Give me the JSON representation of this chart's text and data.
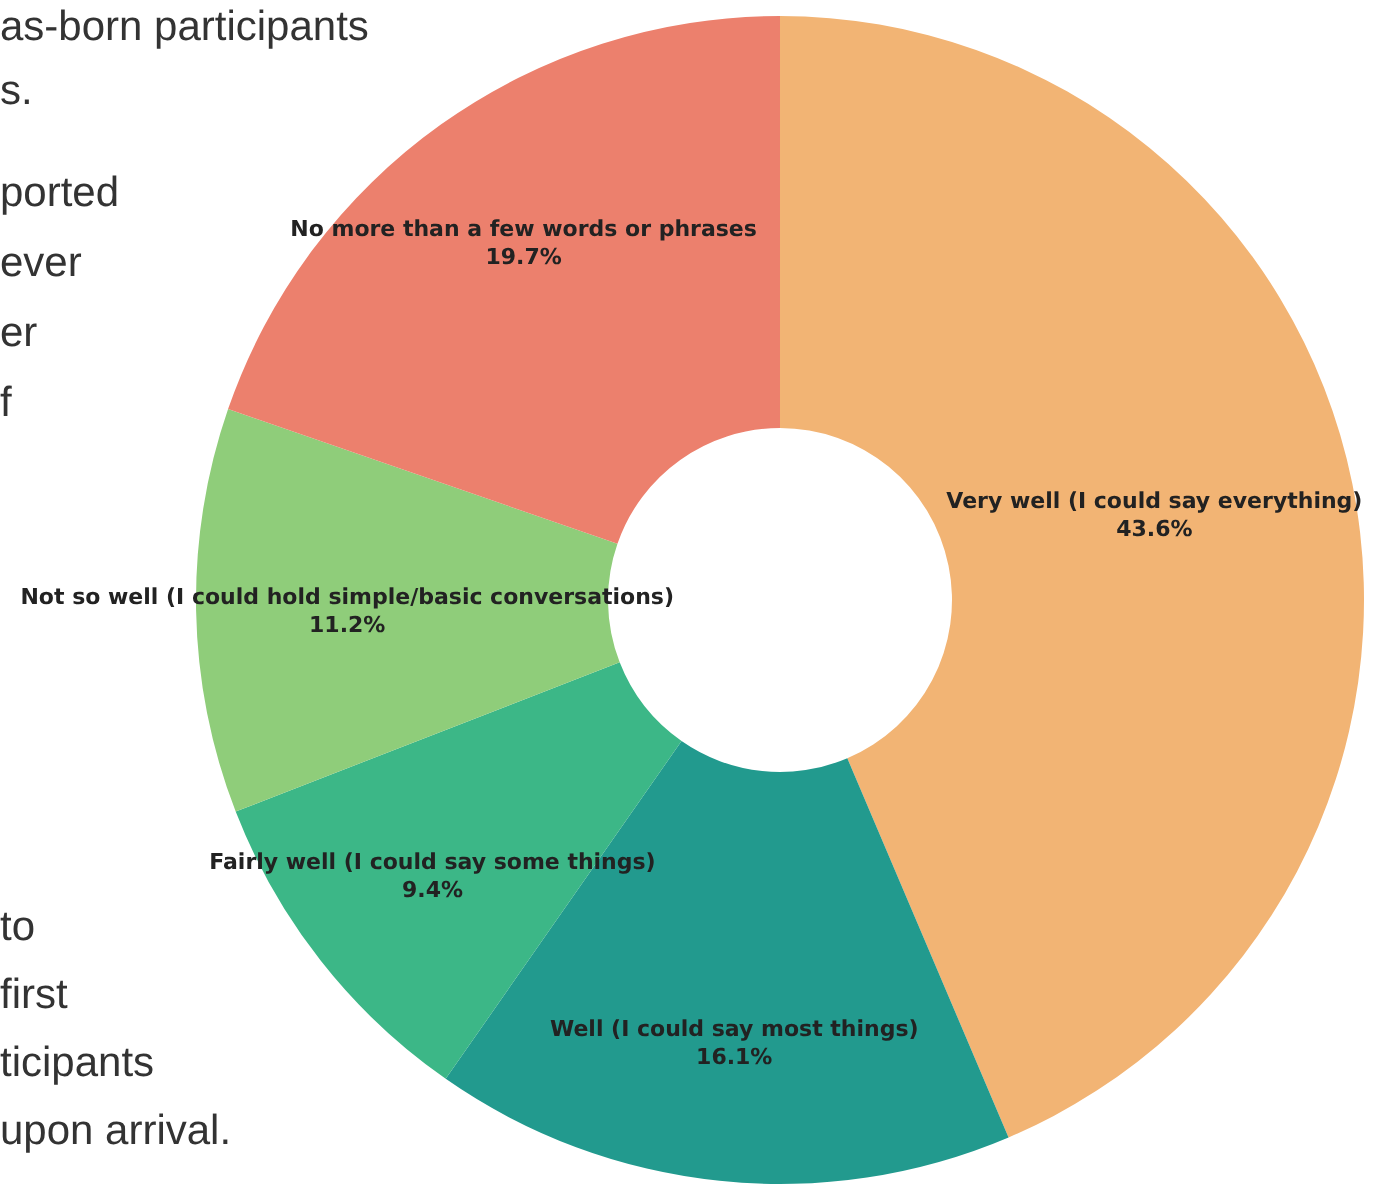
{
  "chart_data": {
    "type": "donut",
    "categories": [
      "Very well (I could say everything)",
      "Well (I could say most things)",
      "Fairly well (I could say some things)",
      "Not so well (I could hold simple/basic conversations)",
      "No more than a few words or phrases"
    ],
    "values": [
      43.6,
      16.1,
      9.4,
      11.2,
      19.7
    ],
    "colors": [
      "#f2b474",
      "#229a8e",
      "#3cb787",
      "#8fcd7a",
      "#ec806d"
    ],
    "value_labels": [
      "43.6%",
      "16.1%",
      "9.4%",
      "11.2%",
      "19.7%"
    ],
    "annotations": [
      "as-born participants",
      "s.",
      "ported",
      "ever",
      "er",
      "f",
      "to",
      "first",
      "ticipants",
      "upon arrival."
    ]
  }
}
